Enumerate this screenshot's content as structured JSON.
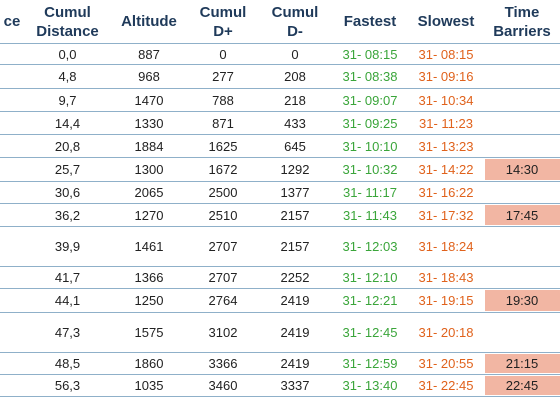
{
  "headers": {
    "distance": "ce",
    "cumul_distance": [
      "Cumul",
      "Distance"
    ],
    "altitude": "Altitude",
    "cumul_dplus": [
      "Cumul",
      "D+"
    ],
    "cumul_dminus": [
      "Cumul",
      "D-"
    ],
    "fastest": "Fastest",
    "slowest": "Slowest",
    "time_barriers": [
      "Time",
      "Barriers"
    ]
  },
  "colors": {
    "header_text": "#1f3a5a",
    "fastest": "#3aa53a",
    "slowest": "#e0621c",
    "barrier_bg": "#f2b6a3",
    "row_border": "#8fb0c9"
  },
  "rows": [
    {
      "cumul_distance": "0,0",
      "altitude": "887",
      "cumul_dplus": "0",
      "cumul_dminus": "0",
      "fastest": "31- 08:15",
      "slowest": "31- 08:15",
      "time_barrier": ""
    },
    {
      "cumul_distance": "4,8",
      "altitude": "968",
      "cumul_dplus": "277",
      "cumul_dminus": "208",
      "fastest": "31- 08:38",
      "slowest": "31- 09:16",
      "time_barrier": ""
    },
    {
      "cumul_distance": "9,7",
      "altitude": "1470",
      "cumul_dplus": "788",
      "cumul_dminus": "218",
      "fastest": "31- 09:07",
      "slowest": "31- 10:34",
      "time_barrier": ""
    },
    {
      "cumul_distance": "14,4",
      "altitude": "1330",
      "cumul_dplus": "871",
      "cumul_dminus": "433",
      "fastest": "31- 09:25",
      "slowest": "31- 11:23",
      "time_barrier": ""
    },
    {
      "cumul_distance": "20,8",
      "altitude": "1884",
      "cumul_dplus": "1625",
      "cumul_dminus": "645",
      "fastest": "31- 10:10",
      "slowest": "31- 13:23",
      "time_barrier": ""
    },
    {
      "cumul_distance": "25,7",
      "altitude": "1300",
      "cumul_dplus": "1672",
      "cumul_dminus": "1292",
      "fastest": "31- 10:32",
      "slowest": "31- 14:22",
      "time_barrier": "14:30"
    },
    {
      "cumul_distance": "30,6",
      "altitude": "2065",
      "cumul_dplus": "2500",
      "cumul_dminus": "1377",
      "fastest": "31- 11:17",
      "slowest": "31- 16:22",
      "time_barrier": ""
    },
    {
      "cumul_distance": "36,2",
      "altitude": "1270",
      "cumul_dplus": "2510",
      "cumul_dminus": "2157",
      "fastest": "31- 11:43",
      "slowest": "31- 17:32",
      "time_barrier": "17:45"
    },
    {
      "cumul_distance": "39,9",
      "altitude": "1461",
      "cumul_dplus": "2707",
      "cumul_dminus": "2157",
      "fastest": "31- 12:03",
      "slowest": "31- 18:24",
      "time_barrier": ""
    },
    {
      "cumul_distance": "41,7",
      "altitude": "1366",
      "cumul_dplus": "2707",
      "cumul_dminus": "2252",
      "fastest": "31- 12:10",
      "slowest": "31- 18:43",
      "time_barrier": ""
    },
    {
      "cumul_distance": "44,1",
      "altitude": "1250",
      "cumul_dplus": "2764",
      "cumul_dminus": "2419",
      "fastest": "31- 12:21",
      "slowest": "31- 19:15",
      "time_barrier": "19:30"
    },
    {
      "cumul_distance": "47,3",
      "altitude": "1575",
      "cumul_dplus": "3102",
      "cumul_dminus": "2419",
      "fastest": "31- 12:45",
      "slowest": "31- 20:18",
      "time_barrier": ""
    },
    {
      "cumul_distance": "48,5",
      "altitude": "1860",
      "cumul_dplus": "3366",
      "cumul_dminus": "2419",
      "fastest": "31- 12:59",
      "slowest": "31- 20:55",
      "time_barrier": "21:15"
    },
    {
      "cumul_distance": "56,3",
      "altitude": "1035",
      "cumul_dplus": "3460",
      "cumul_dminus": "3337",
      "fastest": "31- 13:40",
      "slowest": "31- 22:45",
      "time_barrier": "22:45"
    }
  ]
}
